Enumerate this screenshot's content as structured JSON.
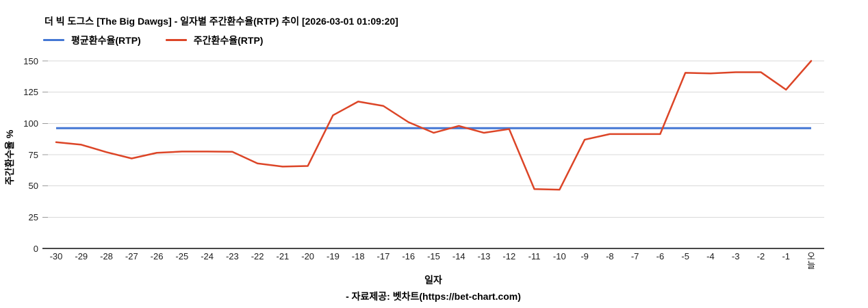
{
  "chart_data": {
    "type": "line",
    "title": "더 빅 도그스 [The Big Dawgs] - 일자별 주간환수율(RTP) 추이 [2026-03-01 01:09:20]",
    "xlabel": "일자",
    "ylabel": "주간환수율 %",
    "x_categories": [
      "-30",
      "-29",
      "-28",
      "-27",
      "-26",
      "-25",
      "-24",
      "-23",
      "-22",
      "-21",
      "-20",
      "-19",
      "-18",
      "-17",
      "-16",
      "-15",
      "-14",
      "-13",
      "-12",
      "-11",
      "-10",
      "-9",
      "-8",
      "-7",
      "-6",
      "-5",
      "-4",
      "-3",
      "-2",
      "-1",
      "오늘"
    ],
    "yticks": [
      0,
      25,
      50,
      75,
      100,
      125,
      150
    ],
    "ylim": [
      0,
      150
    ],
    "grid": true,
    "legend_position": "top-left",
    "series": [
      {
        "name": "평균환수율(RTP)",
        "style": "constant-line",
        "color": "#4477d4",
        "value": 96.2
      },
      {
        "name": "주간환수율(RTP)",
        "style": "line",
        "color": "#dc4527",
        "values": [
          85,
          83,
          77,
          72,
          76.5,
          77.5,
          77.5,
          77.3,
          68,
          65.5,
          66,
          106.5,
          117.5,
          114,
          101,
          92.5,
          98,
          92.5,
          95.5,
          47.5,
          47,
          87,
          91.5,
          91.5,
          91.5,
          140.5,
          140,
          141,
          141,
          127,
          150
        ]
      }
    ],
    "colors": {
      "grid_line": "#d9d9d9",
      "tick_mark": "#9a9a9a",
      "axis_line": "#474747",
      "tick_text": "#202020"
    }
  },
  "footer": {
    "source_note": "- 자료제공: 벳차트(https://bet-chart.com)"
  }
}
